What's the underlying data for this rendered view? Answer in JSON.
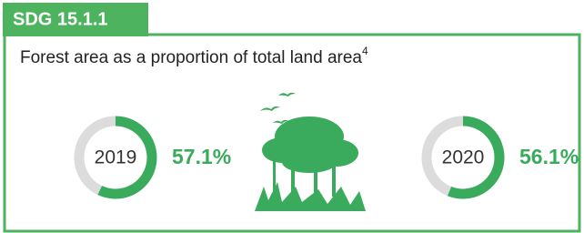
{
  "header": {
    "badge": "SDG 15.1.1",
    "title": "Forest area as a proportion of total land area",
    "footnote": "4"
  },
  "chart_data": [
    {
      "type": "donut",
      "center_label": "2019",
      "value": 57.1,
      "value_label": "57.1%",
      "rest": 42.9,
      "color": "#3aaa5c",
      "rest_color": "#dcdcdc"
    },
    {
      "type": "donut",
      "center_label": "2020",
      "value": 56.1,
      "value_label": "56.1%",
      "rest": 43.9,
      "color": "#3aaa5c",
      "rest_color": "#dcdcdc"
    }
  ]
}
